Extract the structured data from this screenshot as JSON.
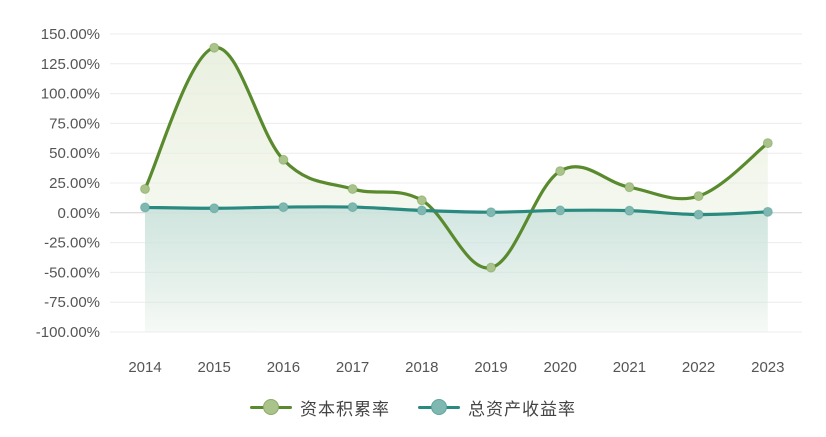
{
  "chart_data": {
    "type": "line",
    "categories": [
      "2014",
      "2015",
      "2016",
      "2017",
      "2018",
      "2019",
      "2020",
      "2021",
      "2022",
      "2023"
    ],
    "ylim": [
      -100,
      150
    ],
    "yticks": [
      150,
      125,
      100,
      75,
      50,
      25,
      0,
      -25,
      -50,
      -75,
      -100
    ],
    "ytick_format": "percent_2dp",
    "title": "",
    "xlabel": "",
    "ylabel": "",
    "grid": true,
    "legend_position": "bottom-center",
    "series": [
      {
        "name": "资本积累率",
        "color": "#5a8a2e",
        "marker_color": "#a9c38a",
        "area_color": "#eef3e4",
        "values": [
          20,
          138.5,
          44.5,
          20,
          10.5,
          -46,
          35,
          21.5,
          14,
          58.5
        ]
      },
      {
        "name": "总资产收益率",
        "color": "#2a8a80",
        "marker_color": "#7fb8b0",
        "area_color": "#dcebe8",
        "values": [
          4.5,
          3.8,
          4.8,
          4.8,
          2,
          0.5,
          2,
          1.8,
          -1.5,
          0.8
        ]
      }
    ]
  }
}
